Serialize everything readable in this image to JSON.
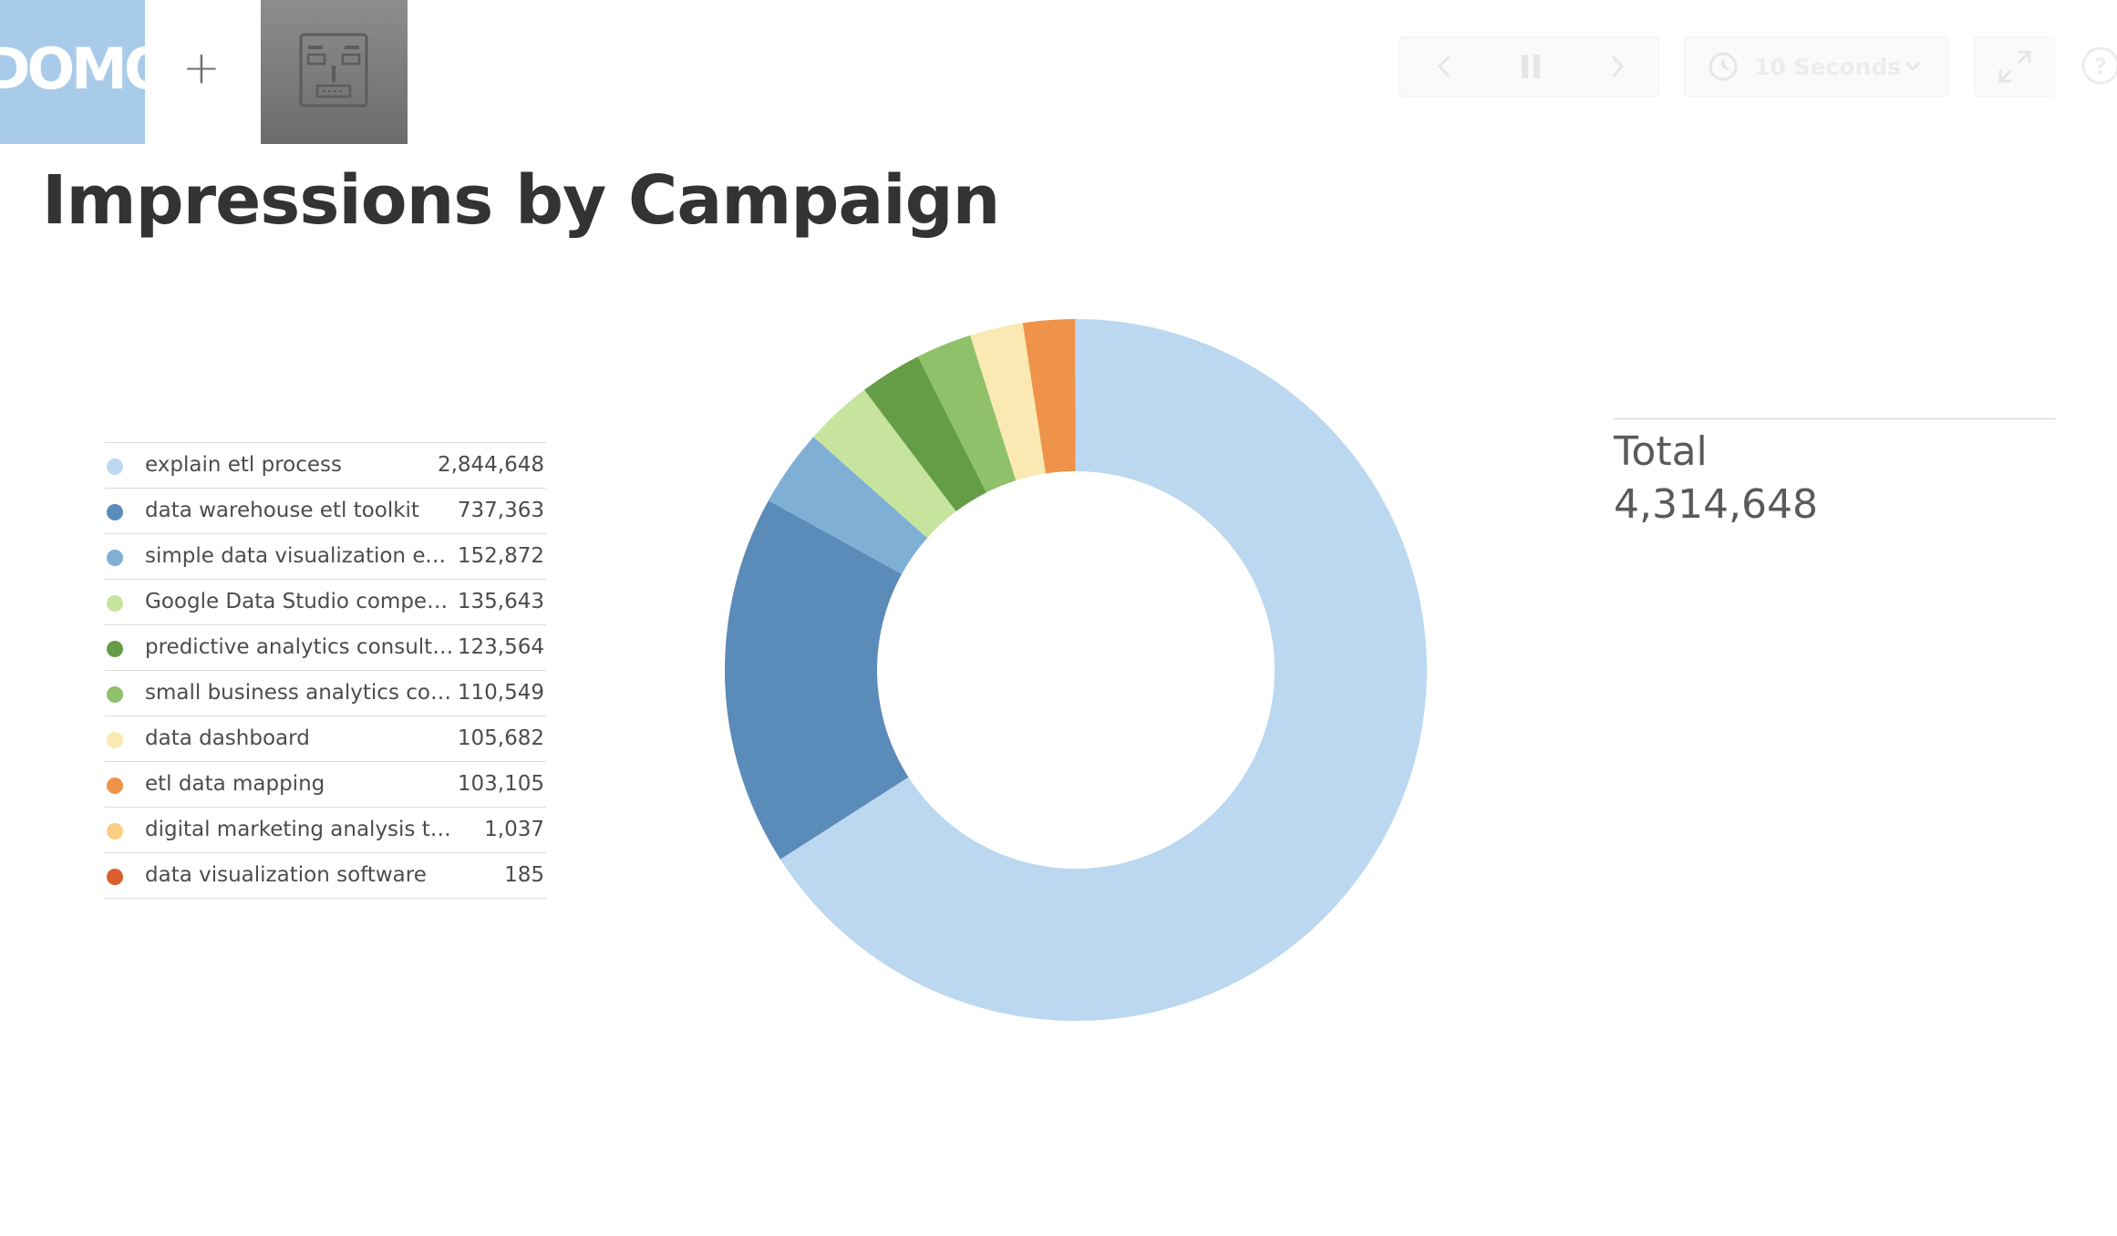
{
  "header": {
    "logo_text": "DOMO",
    "add_label": "+",
    "interval_label": "10 Seconds"
  },
  "page": {
    "title": "Impressions by Campaign"
  },
  "total": {
    "label": "Total",
    "value": "4,314,648"
  },
  "chart_data": {
    "type": "pie",
    "variant": "donut",
    "title": "Impressions by Campaign",
    "legend_position": "left",
    "categories": [
      "explain etl process",
      "data warehouse etl toolkit",
      "simple data visualization exa...",
      "Google Data Studio competit...",
      "predictive analytics consulting",
      "small business analytics cons...",
      "data dashboard",
      "etl data mapping",
      "digital marketing analysis tools",
      "data visualization software"
    ],
    "values": [
      2844648,
      737363,
      152872,
      135643,
      123564,
      110549,
      105682,
      103105,
      1037,
      185
    ],
    "value_labels": [
      "2,844,648",
      "737,363",
      "152,872",
      "135,643",
      "123,564",
      "110,549",
      "105,682",
      "103,105",
      "1,037",
      "185"
    ],
    "colors": [
      "#bcd8f0",
      "#5b8bb8",
      "#80afd6",
      "#c6e49d",
      "#659d47",
      "#8fc06a",
      "#fae9b2",
      "#ee9349",
      "#fbcf83",
      "#db5e2f"
    ],
    "total": 4314648
  }
}
